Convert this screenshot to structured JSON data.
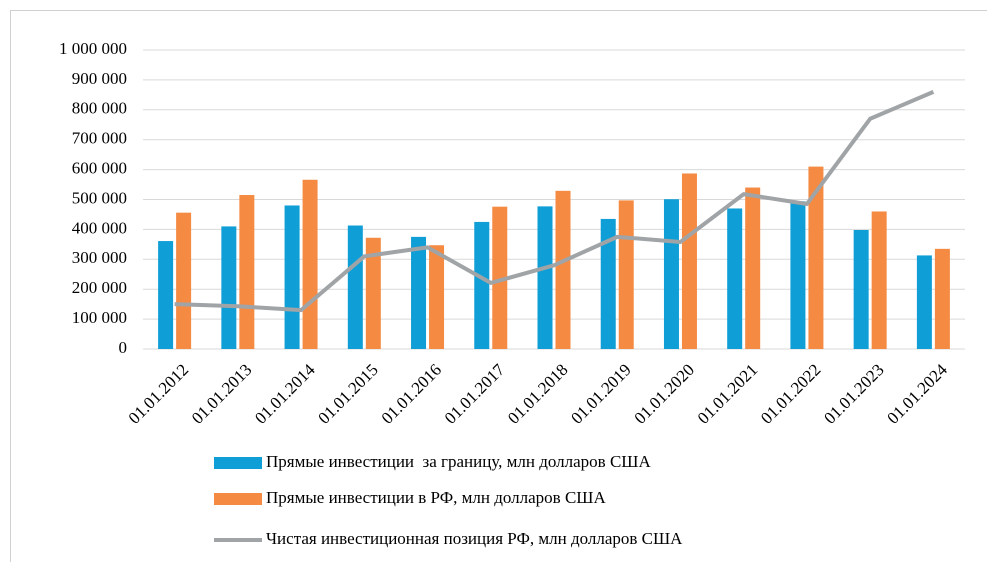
{
  "chart_data": {
    "type": "bar",
    "categories": [
      "01.01.2012",
      "01.01.2013",
      "01.01.2014",
      "01.01.2015",
      "01.01.2016",
      "01.01.2017",
      "01.01.2018",
      "01.01.2019",
      "01.01.2020",
      "01.01.2021",
      "01.01.2022",
      "01.01.2023",
      "01.01.2024"
    ],
    "series": [
      {
        "name": "Прямые инвестиции  за границу, млн долларов США",
        "color": "#0f9ed5",
        "type": "bar",
        "values": [
          361000,
          410000,
          480000,
          413000,
          375000,
          425000,
          477000,
          435000,
          501000,
          470000,
          494000,
          398000,
          313000
        ]
      },
      {
        "name": "Прямые инвестиции в РФ, млн долларов США",
        "color": "#f58a42",
        "type": "bar",
        "values": [
          456000,
          515000,
          566000,
          372000,
          347000,
          476000,
          529000,
          497000,
          587000,
          540000,
          610000,
          460000,
          335000
        ]
      },
      {
        "name": "Чистая инвестиционная позиция РФ, млн долларов США",
        "color": "#a0a4a6",
        "type": "line",
        "values": [
          150000,
          143000,
          130000,
          310000,
          340000,
          221000,
          280000,
          375000,
          358000,
          518000,
          485000,
          770000,
          860000
        ]
      }
    ],
    "ylim": [
      0,
      1000000
    ],
    "yticks": [
      0,
      {
        "value": 100000,
        "label": "100 000"
      },
      {
        "value": 200000,
        "label": "200 000"
      },
      {
        "value": 300000,
        "label": "300 000"
      },
      {
        "value": 400000,
        "label": "400 000"
      },
      {
        "value": 500000,
        "label": "500 000"
      },
      {
        "value": 600000,
        "label": "600 000"
      },
      {
        "value": 700000,
        "label": "700 000"
      },
      {
        "value": 800000,
        "label": "800 000"
      },
      {
        "value": 900000,
        "label": "900 000"
      },
      {
        "value": 1000000,
        "label": "1 000 000"
      }
    ],
    "grid": true,
    "legend": "bottom"
  }
}
